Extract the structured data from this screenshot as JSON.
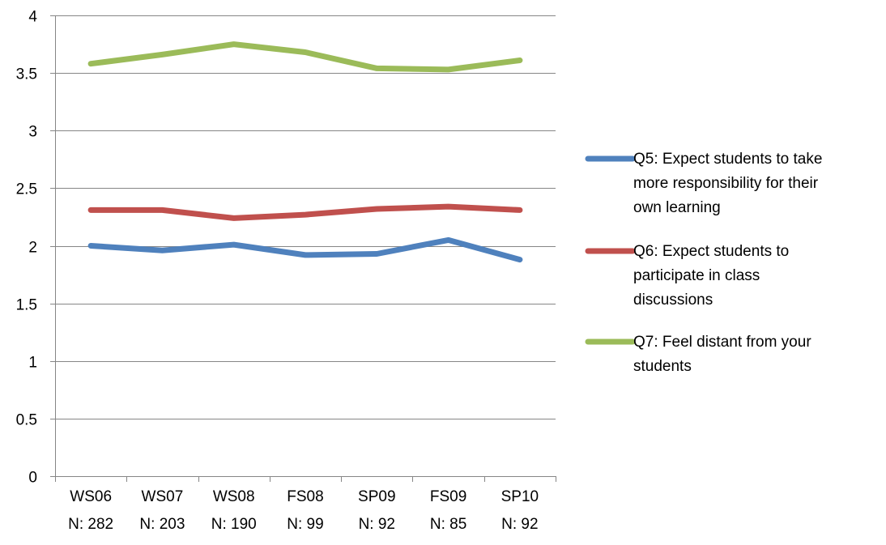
{
  "chart_data": {
    "type": "line",
    "categories": [
      [
        "WS06",
        "N: 282"
      ],
      [
        "WS07",
        "N: 203"
      ],
      [
        "WS08",
        "N: 190"
      ],
      [
        "FS08",
        "N: 99"
      ],
      [
        "SP09",
        "N: 92"
      ],
      [
        "FS09",
        "N: 85"
      ],
      [
        "SP10",
        "N: 92"
      ]
    ],
    "ylim": [
      0,
      4
    ],
    "yticks": [
      0,
      0.5,
      1,
      1.5,
      2,
      2.5,
      3,
      3.5,
      4
    ],
    "ytick_labels": [
      "0",
      "0.5",
      "1",
      "1.5",
      "2",
      "2.5",
      "3",
      "3.5",
      "4"
    ],
    "grid": true,
    "legend_position": "right",
    "series": [
      {
        "name": "Q5: Expect students to take more responsibility for their own learning",
        "legend_lines": [
          "Q5: Expect students to take",
          "more responsibility for their",
          "own learning"
        ],
        "color": "#4F81BD",
        "values": [
          2.0,
          1.96,
          2.01,
          1.92,
          1.93,
          2.05,
          1.88
        ]
      },
      {
        "name": "Q6: Expect students to participate in class discussions",
        "legend_lines": [
          "Q6: Expect students to",
          "participate in class",
          "discussions"
        ],
        "color": "#C0504D",
        "values": [
          2.31,
          2.31,
          2.24,
          2.27,
          2.32,
          2.34,
          2.31
        ]
      },
      {
        "name": "Q7: Feel distant from your students",
        "legend_lines": [
          "Q7: Feel distant from your",
          "students"
        ],
        "color": "#9BBB59",
        "values": [
          3.58,
          3.66,
          3.75,
          3.68,
          3.54,
          3.53,
          3.61
        ]
      }
    ]
  }
}
